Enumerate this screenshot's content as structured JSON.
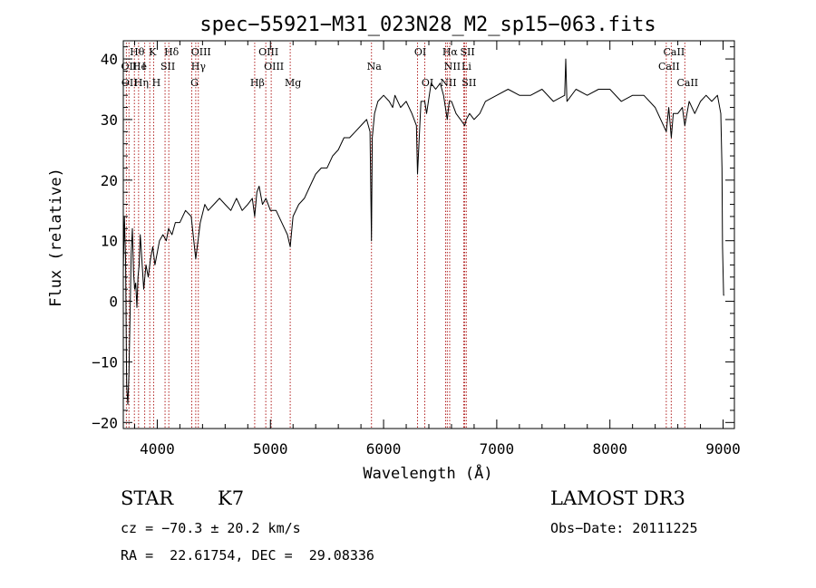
{
  "chart_data": {
    "type": "line",
    "title": "spec−55921−M31_023N28_M2_sp15−063.fits",
    "xlabel": "Wavelength (Å)",
    "ylabel": "Flux (relative)",
    "xlim": [
      3700,
      9100
    ],
    "ylim": [
      -21,
      43
    ],
    "xticks": [
      4000,
      5000,
      6000,
      7000,
      8000,
      9000
    ],
    "xtick_labels": [
      "4000",
      "5000",
      "6000",
      "7000",
      "8000",
      "9000"
    ],
    "yticks": [
      -20,
      -10,
      0,
      10,
      20,
      30,
      40
    ],
    "ytick_labels": [
      "−20",
      "−10",
      "0",
      "10",
      "20",
      "30",
      "40"
    ],
    "series": [
      {
        "name": "flux",
        "x": [
          3700,
          3710,
          3720,
          3730,
          3740,
          3750,
          3760,
          3770,
          3780,
          3790,
          3800,
          3810,
          3820,
          3830,
          3840,
          3850,
          3860,
          3880,
          3900,
          3920,
          3940,
          3960,
          3980,
          4000,
          4020,
          4050,
          4080,
          4100,
          4130,
          4160,
          4200,
          4250,
          4300,
          4340,
          4380,
          4420,
          4450,
          4500,
          4550,
          4600,
          4650,
          4700,
          4750,
          4800,
          4840,
          4861,
          4880,
          4900,
          4930,
          4960,
          5000,
          5050,
          5100,
          5150,
          5175,
          5200,
          5250,
          5300,
          5350,
          5400,
          5450,
          5500,
          5550,
          5600,
          5650,
          5700,
          5750,
          5800,
          5850,
          5880,
          5893,
          5900,
          5920,
          5950,
          6000,
          6050,
          6080,
          6100,
          6150,
          6200,
          6250,
          6290,
          6300,
          6330,
          6364,
          6380,
          6420,
          6460,
          6500,
          6530,
          6563,
          6580,
          6600,
          6640,
          6680,
          6717,
          6731,
          6760,
          6800,
          6850,
          6900,
          7000,
          7100,
          7200,
          7300,
          7400,
          7500,
          7600,
          7610,
          7620,
          7700,
          7800,
          7900,
          8000,
          8100,
          8200,
          8300,
          8400,
          8498,
          8520,
          8542,
          8560,
          8600,
          8640,
          8662,
          8700,
          8750,
          8800,
          8850,
          8900,
          8950,
          8980,
          8990,
          8995,
          9000,
          9005,
          9010
        ],
        "values": [
          5,
          14,
          7,
          -14,
          -17,
          -12,
          -2,
          8,
          12,
          5,
          2,
          3,
          -1,
          4,
          6,
          11,
          8,
          2,
          6,
          4,
          7,
          9,
          6,
          8,
          10,
          11,
          10,
          12,
          11,
          13,
          13,
          15,
          14,
          7,
          13,
          16,
          15,
          16,
          17,
          16,
          15,
          17,
          15,
          16,
          17,
          14,
          18,
          19,
          16,
          17,
          15,
          15,
          13,
          11,
          9,
          14,
          16,
          17,
          19,
          21,
          22,
          22,
          24,
          25,
          27,
          27,
          28,
          29,
          30,
          28,
          10,
          27,
          31,
          33,
          34,
          33,
          32,
          34,
          32,
          33,
          31,
          29,
          21,
          33,
          33,
          31,
          36,
          35,
          36,
          34,
          30,
          33,
          33,
          31,
          30,
          29,
          30,
          31,
          30,
          31,
          33,
          34,
          35,
          34,
          34,
          35,
          33,
          34,
          40,
          33,
          35,
          34,
          35,
          35,
          33,
          34,
          34,
          32,
          28,
          32,
          27,
          31,
          31,
          32,
          29,
          33,
          31,
          33,
          34,
          33,
          34,
          31,
          22,
          9,
          5,
          1,
          1
        ]
      }
    ],
    "line_markers": [
      {
        "label": "Hθ",
        "x": 3798,
        "row": 1
      },
      {
        "label": "K",
        "x": 3934,
        "row": 1
      },
      {
        "label": "Hδ",
        "x": 4102,
        "row": 1
      },
      {
        "label": "OIII",
        "x": 4363,
        "row": 1
      },
      {
        "label": "OIII",
        "x": 4959,
        "row": 1
      },
      {
        "label": "OI",
        "x": 6300,
        "row": 1
      },
      {
        "label": "Hα",
        "x": 6563,
        "row": 1
      },
      {
        "label": "SII",
        "x": 6717,
        "row": 1
      },
      {
        "label": "CaII",
        "x": 8542,
        "row": 1
      },
      {
        "label": "OII",
        "x": 3727,
        "row": 2
      },
      {
        "label": "He",
        "x": 3820,
        "row": 2
      },
      {
        "label": "I",
        "x": 3860,
        "row": 2
      },
      {
        "label": "SII",
        "x": 4069,
        "row": 2
      },
      {
        "label": "Hγ",
        "x": 4340,
        "row": 2
      },
      {
        "label": "OIII",
        "x": 5007,
        "row": 2
      },
      {
        "label": "Na",
        "x": 5893,
        "row": 2
      },
      {
        "label": "NII",
        "x": 6584,
        "row": 2
      },
      {
        "label": "Li",
        "x": 6708,
        "row": 2
      },
      {
        "label": "CaII",
        "x": 8498,
        "row": 2
      },
      {
        "label": "OII",
        "x": 3730,
        "row": 3
      },
      {
        "label": "Hη",
        "x": 3835,
        "row": 3
      },
      {
        "label": "H",
        "x": 3968,
        "row": 3
      },
      {
        "label": "G",
        "x": 4305,
        "row": 3
      },
      {
        "label": "Hβ",
        "x": 4861,
        "row": 3
      },
      {
        "label": "Mg",
        "x": 5175,
        "row": 3
      },
      {
        "label": "OI",
        "x": 6364,
        "row": 3
      },
      {
        "label": "NII",
        "x": 6548,
        "row": 3
      },
      {
        "label": "SII",
        "x": 6731,
        "row": 3
      },
      {
        "label": "CaII",
        "x": 8662,
        "row": 3
      }
    ],
    "marker_lines_x": [
      3727,
      3750,
      3798,
      3835,
      3889,
      3934,
      3968,
      4069,
      4102,
      4305,
      4340,
      4363,
      4861,
      4959,
      5007,
      5175,
      5893,
      6300,
      6364,
      6548,
      6563,
      6584,
      6708,
      6717,
      6731,
      8498,
      8542,
      8662
    ]
  },
  "info": {
    "object_class": "STAR",
    "subclass": "K7",
    "survey": "LAMOST DR3",
    "redshift": "cz = −70.3 ± 20.2 km/s",
    "obs_date": "Obs−Date: 20111225",
    "coords": "RA =  22.61754, DEC =  29.08336"
  },
  "colors": {
    "marker_line": "#b22222",
    "axis": "#000000",
    "spectrum": "#000000"
  }
}
